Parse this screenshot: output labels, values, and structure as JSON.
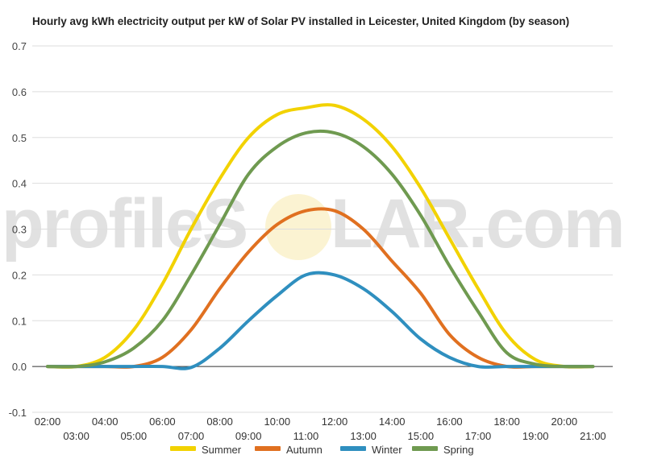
{
  "chart_data": {
    "type": "line",
    "title": "Hourly avg kWh electricity output per kW of Solar PV installed in Leicester, United Kingdom (by season)",
    "watermark": {
      "left": "profileS",
      "right": "LAR.com"
    },
    "colors": {
      "Summer": "#f2d200",
      "Autumn": "#e07020",
      "Winter": "#2f8fbf",
      "Spring": "#6f9a50"
    },
    "legend_position": "bottom",
    "grid": true,
    "ylim": [
      -0.1,
      0.7
    ],
    "y_ticks": [
      "0.7",
      "0.6",
      "0.5",
      "0.4",
      "0.3",
      "0.2",
      "0.1",
      "0.0",
      "-0.1"
    ],
    "xlim": [
      2,
      21.25
    ],
    "x_ticks": [
      "02:00",
      "03:00",
      "04:00",
      "05:00",
      "06:00",
      "07:00",
      "08:00",
      "09:00",
      "10:00",
      "11:00",
      "12:00",
      "13:00",
      "14:00",
      "15:00",
      "16:00",
      "17:00",
      "18:00",
      "19:00",
      "20:00",
      "21:00"
    ],
    "series": [
      {
        "name": "Summer",
        "x": [
          2,
          3,
          4,
          5,
          6,
          7,
          8,
          9,
          10,
          11,
          12,
          13,
          14,
          15,
          16,
          17,
          18,
          19,
          20,
          21
        ],
        "values": [
          0.0,
          0.0,
          0.02,
          0.08,
          0.18,
          0.3,
          0.41,
          0.5,
          0.55,
          0.565,
          0.57,
          0.54,
          0.48,
          0.39,
          0.28,
          0.17,
          0.07,
          0.015,
          0.0,
          0.0
        ]
      },
      {
        "name": "Autumn",
        "x": [
          2,
          3,
          4,
          5,
          6,
          7,
          8,
          9,
          10,
          11,
          12,
          13,
          14,
          15,
          16,
          17,
          18,
          19,
          20,
          21
        ],
        "values": [
          0.0,
          0.0,
          0.0,
          0.0,
          0.02,
          0.08,
          0.17,
          0.25,
          0.31,
          0.34,
          0.34,
          0.3,
          0.23,
          0.16,
          0.07,
          0.02,
          0.0,
          0.0,
          0.0,
          0.0
        ]
      },
      {
        "name": "Winter",
        "x": [
          2,
          3,
          4,
          5,
          6,
          7,
          8,
          9,
          10,
          11,
          12,
          13,
          14,
          15,
          16,
          17,
          18,
          19,
          20,
          21
        ],
        "values": [
          0.0,
          0.0,
          0.0,
          0.0,
          0.0,
          -0.002,
          0.04,
          0.1,
          0.155,
          0.2,
          0.2,
          0.17,
          0.12,
          0.06,
          0.02,
          0.0,
          0.0,
          0.0,
          0.0,
          0.0
        ]
      },
      {
        "name": "Spring",
        "x": [
          2,
          3,
          4,
          5,
          6,
          7,
          8,
          9,
          10,
          11,
          12,
          13,
          14,
          15,
          16,
          17,
          18,
          19,
          20,
          21
        ],
        "values": [
          0.0,
          0.0,
          0.01,
          0.04,
          0.1,
          0.2,
          0.31,
          0.42,
          0.48,
          0.51,
          0.51,
          0.48,
          0.42,
          0.33,
          0.22,
          0.12,
          0.03,
          0.005,
          0.0,
          0.0
        ]
      }
    ]
  }
}
